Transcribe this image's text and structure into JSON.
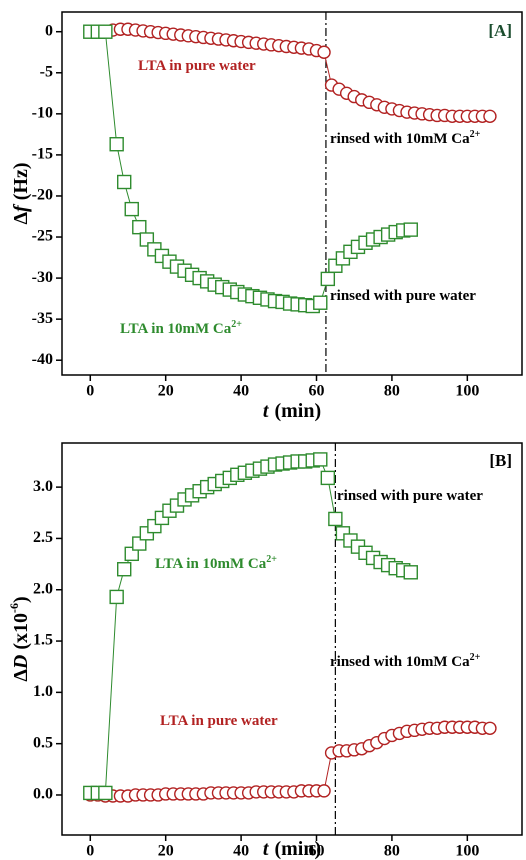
{
  "chart_data": [
    {
      "type": "line",
      "label": "[A]",
      "xlabel": [
        "t",
        "(min)"
      ],
      "ylabel": [
        "Δ",
        "f",
        "(Hz)"
      ],
      "xlim": [
        -7.5,
        114.5
      ],
      "xticks": [
        0,
        20,
        40,
        60,
        80,
        100
      ],
      "ylim": [
        -41.8,
        2.4
      ],
      "yticks": [
        0,
        -5,
        -10,
        -15,
        -20,
        -25,
        -30,
        -35,
        -40
      ],
      "vline": 62.5,
      "series": [
        {
          "color": "#b22222",
          "marker": "circle",
          "x": [
            0,
            2,
            4,
            6,
            8,
            10,
            12,
            14,
            16,
            18,
            20,
            22,
            24,
            26,
            28,
            30,
            32,
            34,
            36,
            38,
            40,
            42,
            44,
            46,
            48,
            50,
            52,
            54,
            56,
            58,
            60,
            62,
            64,
            66,
            68,
            70,
            72,
            74,
            76,
            78,
            80,
            82,
            84,
            86,
            88,
            90,
            92,
            94,
            96,
            98,
            100,
            102,
            104,
            106
          ],
          "values": [
            0,
            0,
            0,
            0.2,
            0.3,
            0.3,
            0.2,
            0.1,
            0,
            -0.1,
            -0.2,
            -0.3,
            -0.4,
            -0.5,
            -0.6,
            -0.7,
            -0.8,
            -0.9,
            -1.0,
            -1.1,
            -1.2,
            -1.3,
            -1.4,
            -1.5,
            -1.6,
            -1.7,
            -1.8,
            -1.9,
            -2.0,
            -2.1,
            -2.3,
            -2.5,
            -6.5,
            -7.0,
            -7.5,
            -7.9,
            -8.3,
            -8.6,
            -8.9,
            -9.2,
            -9.4,
            -9.6,
            -9.8,
            -9.9,
            -10.0,
            -10.1,
            -10.2,
            -10.2,
            -10.3,
            -10.3,
            -10.3,
            -10.3,
            -10.3,
            -10.3
          ]
        },
        {
          "color": "#2e8b2e",
          "marker": "square",
          "x": [
            0,
            2,
            4,
            7,
            9,
            11,
            13,
            15,
            17,
            19,
            21,
            23,
            25,
            27,
            29,
            31,
            33,
            35,
            37,
            39,
            41,
            43,
            45,
            47,
            49,
            51,
            53,
            55,
            57,
            59,
            61,
            63,
            65,
            67,
            69,
            71,
            73,
            75,
            77,
            79,
            81,
            83,
            85
          ],
          "values": [
            0,
            0,
            0,
            -13.7,
            -18.3,
            -21.6,
            -23.8,
            -25.3,
            -26.5,
            -27.3,
            -28,
            -28.6,
            -29.1,
            -29.6,
            -30,
            -30.4,
            -30.8,
            -31.1,
            -31.4,
            -31.7,
            -32,
            -32.2,
            -32.4,
            -32.6,
            -32.8,
            -32.9,
            -33.1,
            -33.2,
            -33.3,
            -33.4,
            -33.0,
            -30.1,
            -28.5,
            -27.6,
            -26.8,
            -26.2,
            -25.7,
            -25.3,
            -25.0,
            -24.7,
            -24.4,
            -24.2,
            -24.1
          ]
        }
      ],
      "annotations": [
        {
          "text": "LTA in pure water",
          "color": "#b22222"
        },
        {
          "text": "rinsed with 10mM Ca",
          "sup": "2+",
          "color": "#000000"
        },
        {
          "text": "rinsed with pure water",
          "color": "#000000"
        },
        {
          "text": "LTA in 10mM Ca",
          "sup": "2+",
          "color": "#2e8b2e"
        }
      ]
    },
    {
      "type": "line",
      "label": "[B]",
      "xlabel": [
        "t",
        "(min)"
      ],
      "ylabel": [
        "Δ",
        "D",
        "(x10",
        "-6",
        ")"
      ],
      "xlim": [
        -7.5,
        114.5
      ],
      "xticks": [
        0,
        20,
        40,
        60,
        80,
        100
      ],
      "ylim": [
        -0.39,
        3.43
      ],
      "yticks": [
        {
          "value": 0,
          "label": "0.0"
        },
        {
          "value": 0.5,
          "label": "0.5"
        },
        {
          "value": 1,
          "label": "1.0"
        },
        {
          "value": 1.5,
          "label": "1.5"
        },
        {
          "value": 2,
          "label": "2.0"
        },
        {
          "value": 2.5,
          "label": "2.5"
        },
        {
          "value": 3,
          "label": "3.0"
        }
      ],
      "vline": 65,
      "series": [
        {
          "color": "#b22222",
          "marker": "circle",
          "x": [
            0,
            2,
            4,
            6,
            8,
            10,
            12,
            14,
            16,
            18,
            20,
            22,
            24,
            26,
            28,
            30,
            32,
            34,
            36,
            38,
            40,
            42,
            44,
            46,
            48,
            50,
            52,
            54,
            56,
            58,
            60,
            62,
            64,
            66,
            68,
            70,
            72,
            74,
            76,
            78,
            80,
            82,
            84,
            86,
            88,
            90,
            92,
            94,
            96,
            98,
            100,
            102,
            104,
            106
          ],
          "values": [
            0,
            0,
            -0.01,
            -0.01,
            -0.01,
            -0.01,
            0,
            0,
            0,
            0,
            0.01,
            0.01,
            0.01,
            0.01,
            0.01,
            0.01,
            0.02,
            0.02,
            0.02,
            0.02,
            0.02,
            0.02,
            0.03,
            0.03,
            0.03,
            0.03,
            0.03,
            0.03,
            0.04,
            0.04,
            0.04,
            0.04,
            0.41,
            0.43,
            0.43,
            0.44,
            0.45,
            0.48,
            0.51,
            0.55,
            0.58,
            0.6,
            0.62,
            0.63,
            0.64,
            0.65,
            0.65,
            0.66,
            0.66,
            0.66,
            0.66,
            0.66,
            0.65,
            0.65
          ]
        },
        {
          "color": "#2e8b2e",
          "marker": "square",
          "x": [
            0,
            2,
            4,
            7,
            9,
            11,
            13,
            15,
            17,
            19,
            21,
            23,
            25,
            27,
            29,
            31,
            33,
            35,
            37,
            39,
            41,
            43,
            45,
            47,
            49,
            51,
            53,
            55,
            57,
            59,
            61,
            63,
            65,
            67,
            69,
            71,
            73,
            75,
            77,
            79,
            81,
            83,
            85
          ],
          "values": [
            0.02,
            0.02,
            0.02,
            1.93,
            2.2,
            2.35,
            2.45,
            2.55,
            2.62,
            2.7,
            2.77,
            2.82,
            2.88,
            2.92,
            2.96,
            3.0,
            3.03,
            3.06,
            3.09,
            3.12,
            3.14,
            3.16,
            3.18,
            3.2,
            3.22,
            3.23,
            3.24,
            3.25,
            3.25,
            3.26,
            3.27,
            3.09,
            2.69,
            2.55,
            2.48,
            2.42,
            2.36,
            2.31,
            2.27,
            2.24,
            2.21,
            2.19,
            2.17
          ]
        }
      ],
      "annotations": [
        {
          "text": "rinsed with pure water",
          "color": "#000000"
        },
        {
          "text": "LTA in 10mM Ca",
          "sup": "2+",
          "color": "#2e8b2e"
        },
        {
          "text": "rinsed with 10mM Ca",
          "sup": "2+",
          "color": "#000000"
        },
        {
          "text": "LTA in pure water",
          "color": "#b22222"
        }
      ]
    }
  ]
}
